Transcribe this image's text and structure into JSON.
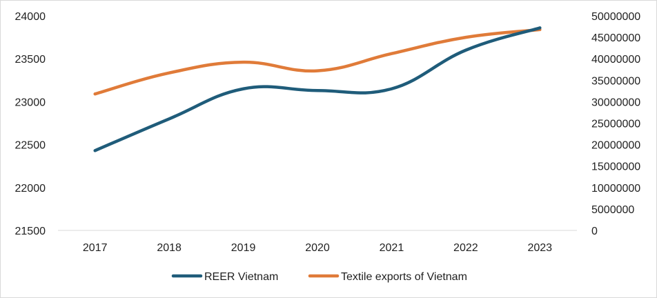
{
  "chart_data": {
    "type": "line",
    "categories": [
      "2017",
      "2018",
      "2019",
      "2020",
      "2021",
      "2022",
      "2023"
    ],
    "y_left": {
      "ylim": [
        21500,
        24000
      ],
      "ticks": [
        "21500",
        "22000",
        "22500",
        "23000",
        "23500",
        "24000"
      ]
    },
    "y_right": {
      "ylim": [
        0,
        50000000
      ],
      "ticks": [
        "0",
        "5000000",
        "10000000",
        "15000000",
        "20000000",
        "25000000",
        "30000000",
        "35000000",
        "40000000",
        "45000000",
        "50000000"
      ]
    },
    "series": [
      {
        "name": "REER Vietnam",
        "axis": "left",
        "color": "#1f5c7a",
        "values": [
          22430,
          22800,
          23150,
          23130,
          23150,
          23600,
          23860
        ]
      },
      {
        "name": "Textile exports of Vietnam",
        "axis": "right",
        "color": "#e07b39",
        "values": [
          31800000,
          36700000,
          39200000,
          37200000,
          41200000,
          45000000,
          46800000
        ]
      }
    ],
    "legend_position": "bottom",
    "grid": false
  }
}
